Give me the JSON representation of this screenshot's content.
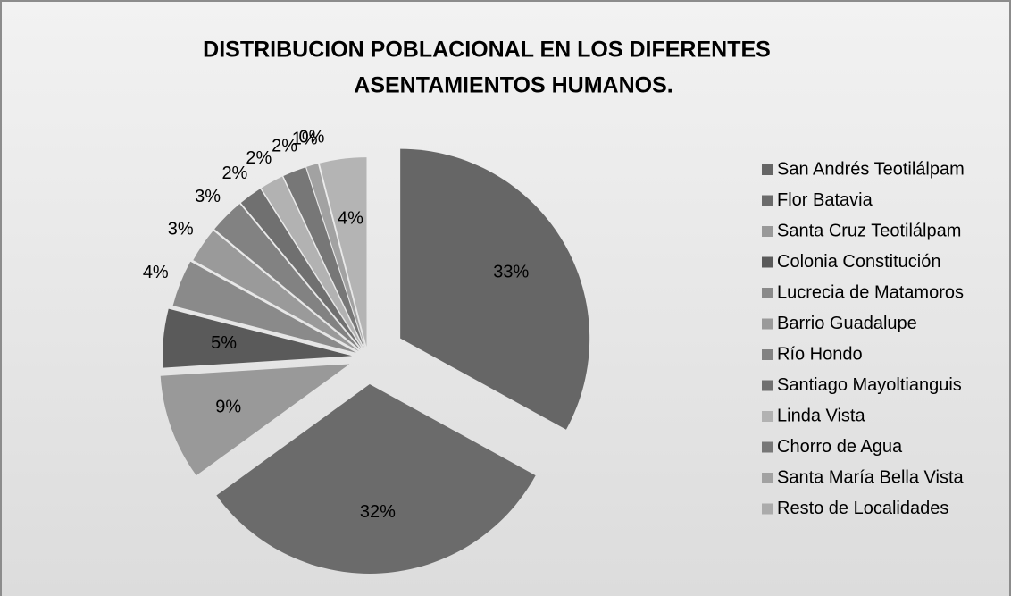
{
  "chart_data": {
    "type": "pie",
    "title": "DISTRIBUCION POBLACIONAL EN LOS DIFERENTES",
    "subtitle": "ASENTAMIENTOS HUMANOS.",
    "categories": [
      "San Andrés Teotilálpam",
      "Flor Batavia",
      "Santa Cruz Teotilálpam",
      "Colonia Constitución",
      "Lucrecia de Matamoros",
      "Barrio Guadalupe",
      "Río Hondo",
      "Santiago Mayoltianguis",
      "Linda Vista",
      "Chorro de Agua",
      "Santa María Bella Vista",
      "Resto de Localidades",
      null
    ],
    "values": [
      33,
      32,
      9,
      5,
      4,
      3,
      3,
      2,
      2,
      2,
      1,
      0,
      4
    ],
    "value_labels": [
      "33%",
      "32%",
      "9%",
      "5%",
      "4%",
      "3%",
      "3%",
      "2%",
      "2%",
      "2%",
      "1%",
      "0%",
      "4%"
    ],
    "colors": [
      "#666666",
      "#6b6b6b",
      "#999999",
      "#5a5a5a",
      "#8a8a8a",
      "#9a9a9a",
      "#828282",
      "#707070",
      "#b2b2b2",
      "#777777",
      "#a2a2a2",
      "#ababab",
      "#b4b4b4"
    ],
    "legend": "right"
  }
}
